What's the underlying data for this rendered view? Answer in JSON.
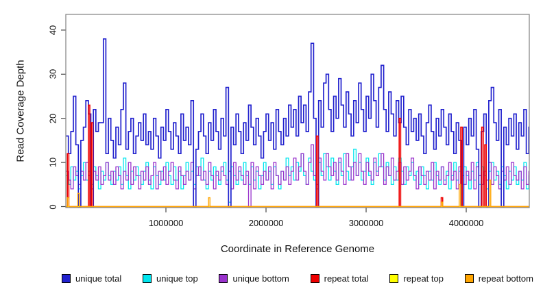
{
  "figure": {
    "background": "#ffffff"
  },
  "chart_data": {
    "type": "line",
    "subtype": "step",
    "title": "",
    "xlabel": "Coordinate in Reference Genome",
    "ylabel": "Read Coverage Depth",
    "xlim": [
      0,
      4630000
    ],
    "ylim": [
      0,
      42
    ],
    "grid": false,
    "x_ticks": [
      1000000,
      2000000,
      3000000,
      4000000
    ],
    "x_tick_labels": [
      "1000000",
      "2000000",
      "3000000",
      "4000000"
    ],
    "y_ticks": [
      0,
      10,
      20,
      30,
      40
    ],
    "y_tick_labels": [
      "0",
      "10",
      "20",
      "30",
      "40"
    ],
    "step_bin": 25000,
    "spike_bin": 15000,
    "legend": {
      "position": "bottom"
    },
    "series": [
      {
        "name": "unique total",
        "color": "#2121CE",
        "style": "step",
        "values": [
          16,
          12,
          17,
          25,
          14,
          0,
          15,
          18,
          24,
          21,
          0,
          22,
          17,
          19,
          19,
          38,
          12,
          20,
          15,
          11,
          18,
          14,
          22,
          28,
          13,
          17,
          20,
          12,
          16,
          19,
          15,
          21,
          14,
          17,
          13,
          20,
          16,
          11,
          18,
          15,
          22,
          17,
          13,
          19,
          16,
          12,
          21,
          15,
          18,
          14,
          24,
          0,
          13,
          17,
          21,
          16,
          12,
          19,
          15,
          22,
          17,
          13,
          20,
          16,
          27,
          0,
          18,
          14,
          21,
          17,
          12,
          19,
          15,
          23,
          18,
          14,
          20,
          16,
          11,
          17,
          21,
          15,
          19,
          13,
          22,
          17,
          14,
          20,
          16,
          23,
          18,
          22,
          16,
          25,
          19,
          23,
          17,
          26,
          37,
          20,
          0,
          24,
          18,
          28,
          30,
          22,
          17,
          25,
          20,
          29,
          23,
          18,
          26,
          21,
          16,
          24,
          19,
          28,
          22,
          17,
          25,
          20,
          30,
          24,
          18,
          27,
          32,
          22,
          17,
          26,
          21,
          16,
          24,
          19,
          25,
          18,
          14,
          22,
          17,
          20,
          15,
          21,
          16,
          12,
          19,
          23,
          17,
          13,
          20,
          16,
          22,
          18,
          14,
          21,
          17,
          12,
          19,
          15,
          0,
          18,
          14,
          20,
          16,
          22,
          13,
          0,
          17,
          21,
          0,
          24,
          27,
          19,
          15,
          22,
          0,
          18,
          14,
          20,
          16,
          21,
          13,
          19,
          16,
          22,
          12,
          18
        ]
      },
      {
        "name": "unique top",
        "color": "#00E5EE",
        "style": "step",
        "values": [
          7,
          5,
          9,
          6,
          8,
          4,
          7,
          10,
          6,
          8,
          5,
          9,
          7,
          4,
          8,
          6,
          10,
          7,
          5,
          8,
          6,
          9,
          5,
          11,
          7,
          4,
          8,
          6,
          9,
          7,
          5,
          8,
          10,
          6,
          4,
          9,
          7,
          5,
          8,
          6,
          10,
          7,
          5,
          9,
          6,
          8,
          4,
          7,
          10,
          6,
          8,
          5,
          9,
          7,
          11,
          6,
          4,
          8,
          6,
          9,
          7,
          5,
          8,
          10,
          6,
          1,
          9,
          7,
          5,
          8,
          6,
          10,
          7,
          5,
          9,
          6,
          8,
          4,
          7,
          10,
          6,
          8,
          5,
          9,
          7,
          4,
          8,
          6,
          11,
          7,
          9,
          6,
          10,
          8,
          12,
          7,
          5,
          11,
          8,
          6,
          4,
          10,
          7,
          12,
          9,
          6,
          11,
          8,
          5,
          10,
          7,
          12,
          8,
          6,
          9,
          13,
          7,
          10,
          6,
          8,
          11,
          7,
          5,
          10,
          8,
          12,
          9,
          6,
          10,
          7,
          5,
          9,
          6,
          11,
          8,
          5,
          9,
          7,
          10,
          6,
          8,
          5,
          9,
          7,
          4,
          8,
          6,
          10,
          7,
          5,
          9,
          6,
          8,
          4,
          7,
          10,
          6,
          8,
          5,
          9,
          7,
          4,
          8,
          6,
          10,
          5,
          9,
          7,
          4,
          8,
          10,
          6,
          8,
          5,
          9,
          7,
          4,
          8,
          6,
          9,
          5,
          8,
          6,
          10,
          4,
          7
        ]
      },
      {
        "name": "unique bottom",
        "color": "#9932CC",
        "style": "step",
        "values": [
          8,
          6,
          4,
          9,
          7,
          5,
          8,
          6,
          10,
          7,
          4,
          8,
          6,
          9,
          5,
          7,
          10,
          6,
          8,
          5,
          9,
          7,
          4,
          8,
          6,
          10,
          5,
          9,
          7,
          4,
          8,
          6,
          9,
          5,
          7,
          10,
          4,
          8,
          6,
          9,
          5,
          8,
          10,
          6,
          4,
          9,
          7,
          5,
          8,
          6,
          10,
          4,
          7,
          9,
          6,
          8,
          5,
          10,
          7,
          4,
          8,
          6,
          9,
          7,
          5,
          8,
          4,
          10,
          6,
          9,
          7,
          5,
          8,
          0,
          10,
          4,
          9,
          7,
          5,
          8,
          6,
          9,
          4,
          10,
          7,
          5,
          8,
          6,
          9,
          5,
          8,
          11,
          6,
          9,
          12,
          8,
          5,
          10,
          14,
          7,
          5,
          11,
          8,
          6,
          12,
          9,
          7,
          10,
          6,
          11,
          8,
          5,
          12,
          9,
          6,
          10,
          7,
          12,
          8,
          5,
          10,
          8,
          6,
          11,
          7,
          9,
          12,
          5,
          9,
          7,
          11,
          6,
          8,
          10,
          5,
          9,
          6,
          8,
          11,
          7,
          4,
          9,
          7,
          5,
          8,
          6,
          10,
          4,
          8,
          6,
          9,
          5,
          7,
          10,
          6,
          8,
          4,
          9,
          7,
          5,
          8,
          6,
          10,
          4,
          9,
          7,
          5,
          8,
          6,
          10,
          5,
          9,
          7,
          4,
          8,
          6,
          9,
          5,
          10,
          7,
          6,
          8,
          4,
          9,
          5,
          8
        ]
      },
      {
        "name": "repeat total",
        "color": "#EE0000",
        "style": "spikes",
        "baseline": 0,
        "spikes": [
          {
            "x": 10000,
            "v": 12
          },
          {
            "x": 220000,
            "v": 23
          },
          {
            "x": 255000,
            "v": 19
          },
          {
            "x": 2510000,
            "v": 16
          },
          {
            "x": 3330000,
            "v": 20
          },
          {
            "x": 3750000,
            "v": 2
          },
          {
            "x": 3950000,
            "v": 18
          },
          {
            "x": 4150000,
            "v": 18
          },
          {
            "x": 4190000,
            "v": 14
          }
        ]
      },
      {
        "name": "repeat top",
        "color": "#FFFF00",
        "style": "spikes",
        "baseline": 0,
        "spikes": []
      },
      {
        "name": "repeat bottom",
        "color": "#FFA500",
        "style": "spikes",
        "baseline": 0,
        "spikes": [
          {
            "x": 15000,
            "v": 2
          },
          {
            "x": 120000,
            "v": 3
          },
          {
            "x": 1430000,
            "v": 2
          },
          {
            "x": 3755000,
            "v": 1
          },
          {
            "x": 3930000,
            "v": 5
          },
          {
            "x": 4225000,
            "v": 6
          }
        ]
      }
    ]
  }
}
